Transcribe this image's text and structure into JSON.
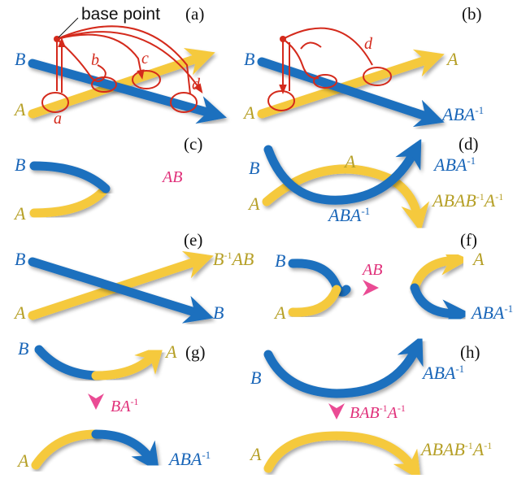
{
  "base_point_label": "base point",
  "panels": {
    "a": {
      "tag": "(a)",
      "B": "B",
      "A": "A",
      "loops": [
        "a",
        "b",
        "c",
        "d"
      ]
    },
    "b": {
      "tag": "(b)",
      "B": "B",
      "A_in": "A",
      "A_out": "A",
      "loop": "d",
      "out_base": "ABA",
      "out_exp": "-1"
    },
    "c": {
      "tag": "(c)",
      "B": "B",
      "A": "A",
      "merged": "AB"
    },
    "d": {
      "tag": "(d)",
      "B": "B",
      "A_in": "A",
      "A_mid": "A",
      "top_out_base": "ABA",
      "top_out_exp": "-1",
      "bottom_mid_base": "ABA",
      "bottom_mid_exp": "-1",
      "bottom_out_p1": "ABAB",
      "bottom_out_e1": "-1",
      "bottom_out_p2": "A",
      "bottom_out_e2": "-1"
    },
    "e": {
      "tag": "(e)",
      "B_in": "B",
      "A_in": "A",
      "B_out": "B",
      "top_out_p1": "B",
      "top_out_e1": "-1",
      "top_out_p2": "AB"
    },
    "f": {
      "tag": "(f)",
      "B": "B",
      "A": "A",
      "bridge": "AB",
      "A_out": "A",
      "out_base": "ABA",
      "out_exp": "-1"
    },
    "g": {
      "tag": "(g)",
      "B": "B",
      "A_in": "A",
      "A_out": "A",
      "bridge_base": "BA",
      "bridge_exp": "-1",
      "out_base": "ABA",
      "out_exp": "-1"
    },
    "h": {
      "tag": "(h)",
      "B": "B",
      "A": "A",
      "top_out_base": "ABA",
      "top_out_exp": "-1",
      "bridge_p1": "BAB",
      "bridge_e1": "-1",
      "bridge_p2": "A",
      "bridge_e2": "-1",
      "bottom_out_p1": "ABAB",
      "bottom_out_e1": "-1",
      "bottom_out_p2": "A",
      "bottom_out_e2": "-1"
    }
  },
  "colors": {
    "yellow_string": "#f5c93c",
    "blue_string": "#1d6fbe",
    "pink_string": "#ea4b94",
    "red_loop": "#d42a1c"
  }
}
